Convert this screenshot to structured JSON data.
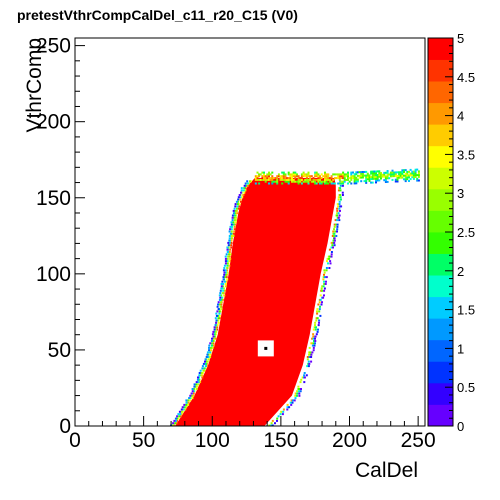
{
  "chart_data": {
    "type": "heatmap",
    "title": "pretestVthrCompCalDel_c11_r20_C15 (V0)",
    "xlabel": "CalDel",
    "ylabel": "VthrComp",
    "xlim": [
      0,
      255
    ],
    "ylim": [
      0,
      255
    ],
    "zlim": [
      0,
      5
    ],
    "x_ticks": [
      0,
      50,
      100,
      150,
      200,
      250
    ],
    "y_ticks": [
      0,
      50,
      100,
      150,
      200,
      250
    ],
    "z_ticks": [
      0,
      0.5,
      1,
      1.5,
      2,
      2.5,
      3,
      3.5,
      4,
      4.5,
      5
    ],
    "grid": false,
    "legend": "colorbar-right",
    "saturated_region": {
      "z": 5,
      "left_edge": [
        [
          0,
          73
        ],
        [
          20,
          87
        ],
        [
          40,
          97
        ],
        [
          60,
          104
        ],
        [
          80,
          108
        ],
        [
          100,
          112
        ],
        [
          120,
          115
        ],
        [
          140,
          119
        ],
        [
          150,
          122
        ],
        [
          158,
          126
        ],
        [
          163,
          131
        ]
      ],
      "right_edge": [
        [
          0,
          138
        ],
        [
          20,
          158
        ],
        [
          40,
          166
        ],
        [
          60,
          171
        ],
        [
          80,
          175
        ],
        [
          100,
          179
        ],
        [
          120,
          184
        ],
        [
          140,
          188
        ],
        [
          150,
          190
        ],
        [
          158,
          190
        ],
        [
          163,
          189
        ]
      ]
    },
    "plateau_band": {
      "x_range": [
        131,
        250
      ],
      "y_center": 164,
      "y_halfwidth": 4
    },
    "hole": {
      "x": 139,
      "y": 51,
      "size": 10
    },
    "hole_center_z": 0
  }
}
